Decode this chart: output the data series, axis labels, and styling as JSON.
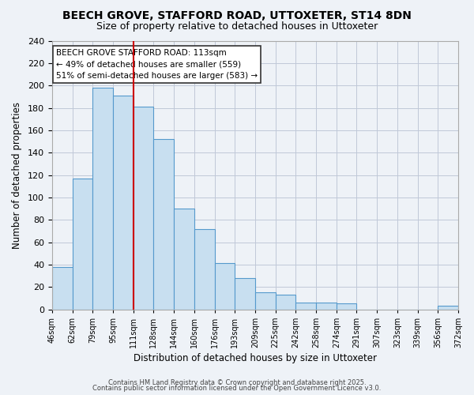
{
  "title": "BEECH GROVE, STAFFORD ROAD, UTTOXETER, ST14 8DN",
  "subtitle": "Size of property relative to detached houses in Uttoxeter",
  "xlabel": "Distribution of detached houses by size in Uttoxeter",
  "ylabel": "Number of detached properties",
  "bin_labels": [
    "46sqm",
    "62sqm",
    "79sqm",
    "95sqm",
    "111sqm",
    "128sqm",
    "144sqm",
    "160sqm",
    "176sqm",
    "193sqm",
    "209sqm",
    "225sqm",
    "242sqm",
    "258sqm",
    "274sqm",
    "291sqm",
    "307sqm",
    "323sqm",
    "339sqm",
    "356sqm",
    "372sqm"
  ],
  "values": [
    38,
    117,
    198,
    191,
    181,
    152,
    90,
    72,
    41,
    28,
    15,
    13,
    6,
    6,
    5,
    0,
    0,
    0,
    0,
    3
  ],
  "bar_color": "#c8dff0",
  "bar_edge_color": "#5599cc",
  "vline_x_index": 4,
  "vline_color": "#cc0000",
  "ylim": [
    0,
    240
  ],
  "yticks": [
    0,
    20,
    40,
    60,
    80,
    100,
    120,
    140,
    160,
    180,
    200,
    220,
    240
  ],
  "annotation_title": "BEECH GROVE STAFFORD ROAD: 113sqm",
  "annotation_line1": "← 49% of detached houses are smaller (559)",
  "annotation_line2": "51% of semi-detached houses are larger (583) →",
  "annotation_box_color": "#ffffff",
  "annotation_box_edge": "#333333",
  "footer1": "Contains HM Land Registry data © Crown copyright and database right 2025.",
  "footer2": "Contains public sector information licensed under the Open Government Licence v3.0.",
  "background_color": "#eef2f7",
  "grid_color": "#c0c8d8"
}
